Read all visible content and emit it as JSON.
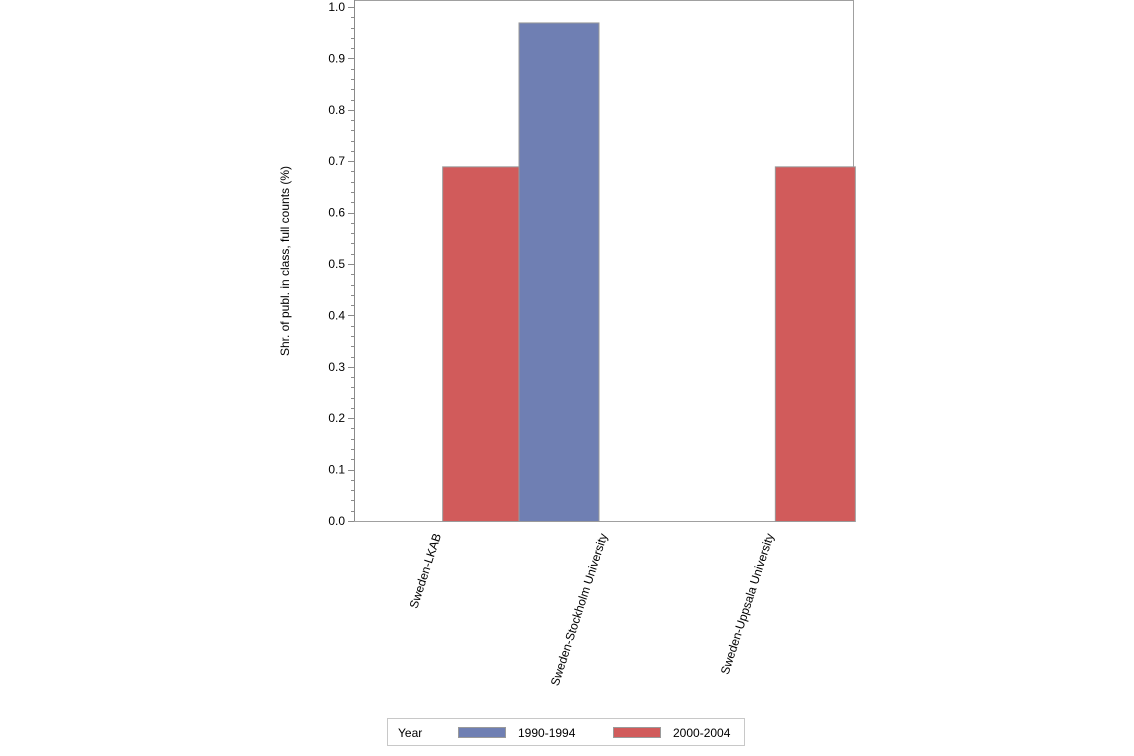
{
  "chart_data": {
    "type": "bar",
    "title": "",
    "xlabel": "",
    "ylabel": "Shr. of publ. in class, full counts (%)",
    "ylim": [
      0.0,
      1.0
    ],
    "yticks": [
      "0.0",
      "0.1",
      "0.2",
      "0.3",
      "0.4",
      "0.5",
      "0.6",
      "0.7",
      "0.8",
      "0.9",
      "1.0"
    ],
    "grid": false,
    "legend_position": "bottom",
    "categories": [
      "Sweden-LKAB",
      "Sweden-Stockholm University",
      "Sweden-Uppsala University"
    ],
    "series": [
      {
        "name": "1990-1994",
        "color": "#6f7fb3",
        "values": [
          null,
          0.97,
          null
        ]
      },
      {
        "name": "2000-2004",
        "color": "#d15b5b",
        "values": [
          0.69,
          null,
          0.69
        ]
      }
    ]
  },
  "legend": {
    "title": "Year",
    "items": [
      {
        "label": "1990-1994",
        "color": "#6f7fb3"
      },
      {
        "label": "2000-2004",
        "color": "#d15b5b"
      }
    ]
  }
}
